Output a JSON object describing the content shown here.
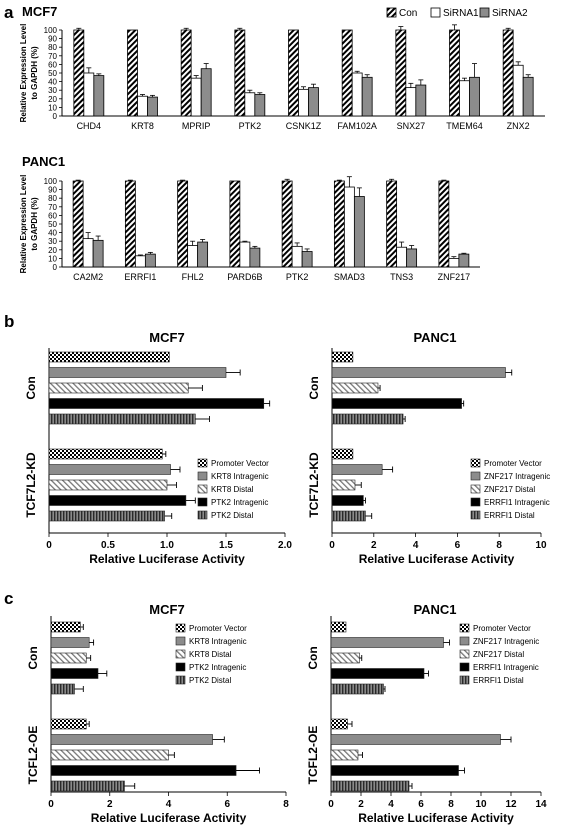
{
  "figure": {
    "panel_labels": [
      "a",
      "b",
      "c"
    ]
  },
  "chart_data": [
    {
      "id": "a-mcf7",
      "panel": "a",
      "type": "bar",
      "title": "MCF7",
      "ylabel_lines": [
        "Relative Expression Level",
        "to GAPDH (%)"
      ],
      "ylim": [
        0,
        100
      ],
      "yticks": [
        0,
        10,
        20,
        30,
        40,
        50,
        60,
        70,
        80,
        90,
        100
      ],
      "legend": [
        "Con",
        "SiRNA1",
        "SiRNA2"
      ],
      "legend_position": "top-right",
      "categories": [
        "CHD4",
        "KRT8",
        "MPRIP",
        "PTK2",
        "CSNK1Z",
        "FAM102A",
        "SNX27",
        "TMEM64",
        "ZNX2"
      ],
      "series": [
        {
          "name": "Con",
          "values": [
            100,
            100,
            100,
            100,
            100,
            100,
            100,
            100,
            100
          ],
          "errors": [
            2,
            0,
            2,
            2,
            0,
            0,
            4,
            6,
            2
          ]
        },
        {
          "name": "SiRNA1",
          "values": [
            50,
            23,
            44,
            27,
            31,
            50,
            33,
            41,
            59
          ],
          "errors": [
            6,
            2,
            3,
            3,
            3,
            2,
            5,
            3,
            4
          ]
        },
        {
          "name": "SiRNA2",
          "values": [
            47,
            22,
            55,
            25,
            33,
            45,
            36,
            45,
            45
          ],
          "errors": [
            2,
            2,
            6,
            2,
            4,
            3,
            6,
            16,
            3
          ]
        }
      ]
    },
    {
      "id": "a-panc1",
      "panel": "a",
      "type": "bar",
      "title": "PANC1",
      "ylabel_lines": [
        "Relative Expression Level",
        "to GAPDH (%)"
      ],
      "ylim": [
        0,
        100
      ],
      "yticks": [
        0,
        10,
        20,
        30,
        40,
        50,
        60,
        70,
        80,
        90,
        100
      ],
      "categories": [
        "CA2M2",
        "ERRFI1",
        "FHL2",
        "PARD6B",
        "PTK2",
        "SMAD3",
        "TNS3",
        "ZNF217"
      ],
      "series": [
        {
          "name": "Con",
          "values": [
            100,
            100,
            100,
            100,
            100,
            100,
            100,
            100
          ],
          "errors": [
            1,
            1,
            1,
            0,
            2,
            1,
            2,
            1
          ]
        },
        {
          "name": "SiRNA1",
          "values": [
            33,
            13,
            25,
            29,
            24,
            93,
            23,
            10
          ],
          "errors": [
            7,
            1,
            5,
            1,
            4,
            12,
            6,
            2
          ]
        },
        {
          "name": "SiRNA2",
          "values": [
            31,
            15,
            29,
            22,
            18,
            82,
            21,
            15
          ],
          "errors": [
            5,
            2,
            3,
            2,
            3,
            10,
            4,
            1
          ]
        }
      ]
    },
    {
      "id": "b-mcf7",
      "panel": "b",
      "type": "bar",
      "orientation": "horizontal",
      "title": "MCF7",
      "xlabel": "Relative Luciferase Activity",
      "xlim": [
        0,
        2.0
      ],
      "xticks": [
        0,
        0.5,
        1.0,
        1.5,
        2.0
      ],
      "xtick_labels": [
        "0",
        "0.5",
        "1.0",
        "1.5",
        "2.0"
      ],
      "legend": [
        "Promoter Vector",
        "KRT8 Intragenic",
        "KRT8 Distal",
        "PTK2 Intragenic",
        "PTK2 Distal"
      ],
      "groups": [
        {
          "label": "Con",
          "values": [
            1.02,
            1.5,
            1.18,
            1.82,
            1.24
          ],
          "errors": [
            0,
            0.12,
            0.12,
            0.05,
            0.12
          ]
        },
        {
          "label": "TCF7L2-KD",
          "values": [
            0.96,
            1.03,
            1.0,
            1.16,
            0.98
          ],
          "errors": [
            0.03,
            0.08,
            0.08,
            0.08,
            0.06
          ]
        }
      ]
    },
    {
      "id": "b-panc1",
      "panel": "b",
      "type": "bar",
      "orientation": "horizontal",
      "title": "PANC1",
      "xlabel": "Relative Luciferase Activity",
      "xlim": [
        0,
        10
      ],
      "xticks": [
        0,
        2,
        4,
        6,
        8,
        10
      ],
      "xtick_labels": [
        "0",
        "2",
        "4",
        "6",
        "8",
        "10"
      ],
      "legend": [
        "Promoter Vector",
        "ZNF217 Intragenic",
        "ZNF217 Distal",
        "ERRFI1 Intragenic",
        "ERRFI1 Distal"
      ],
      "groups": [
        {
          "label": "Con",
          "values": [
            1.0,
            8.3,
            2.2,
            6.2,
            3.4
          ],
          "errors": [
            0,
            0.3,
            0.1,
            0.1,
            0.1
          ]
        },
        {
          "label": "TCF7L2-KD",
          "values": [
            1.0,
            2.4,
            1.1,
            1.5,
            1.6
          ],
          "errors": [
            0,
            0.5,
            0.3,
            0.1,
            0.3
          ]
        }
      ]
    },
    {
      "id": "c-mcf7",
      "panel": "c",
      "type": "bar",
      "orientation": "horizontal",
      "title": "MCF7",
      "xlabel": "Relative Luciferase Activity",
      "xlim": [
        0,
        8
      ],
      "xticks": [
        0,
        2,
        4,
        6,
        8
      ],
      "xtick_labels": [
        "0",
        "2",
        "4",
        "6",
        "8"
      ],
      "legend": [
        "Promoter Vector",
        "KRT8 Intragenic",
        "KRT8 Distal",
        "PTK2 Intragenic",
        "PTK2 Distal"
      ],
      "groups": [
        {
          "label": "Con",
          "values": [
            1.0,
            1.3,
            1.2,
            1.6,
            0.8
          ],
          "errors": [
            0.1,
            0.15,
            0.15,
            0.3,
            0.3
          ]
        },
        {
          "label": "TCFL2-OE",
          "values": [
            1.2,
            5.5,
            4.0,
            6.3,
            2.5
          ],
          "errors": [
            0.1,
            0.4,
            0.2,
            0.8,
            0.35
          ]
        }
      ]
    },
    {
      "id": "c-panc1",
      "panel": "c",
      "type": "bar",
      "orientation": "horizontal",
      "title": "PANC1",
      "xlabel": "Relative Luciferase Activity",
      "xlim": [
        0,
        14
      ],
      "xticks": [
        0,
        2,
        4,
        6,
        8,
        10,
        12,
        14
      ],
      "xtick_labels": [
        "0",
        "2",
        "4",
        "6",
        "8",
        "10",
        "12",
        "14"
      ],
      "legend": [
        "Promoter Vector",
        "ZNF217 Intragenic",
        "ZNF217 Distal",
        "ERRFI1 Intragenic",
        "ERRFI1 Distal"
      ],
      "groups": [
        {
          "label": "Con",
          "values": [
            1.0,
            7.5,
            1.9,
            6.2,
            3.5
          ],
          "errors": [
            0,
            0.4,
            0.15,
            0.3,
            0.1
          ]
        },
        {
          "label": "TCFL2-OE",
          "values": [
            1.1,
            11.3,
            1.8,
            8.5,
            5.2
          ],
          "errors": [
            0.3,
            0.7,
            0.3,
            0.4,
            0.2
          ]
        }
      ]
    }
  ]
}
